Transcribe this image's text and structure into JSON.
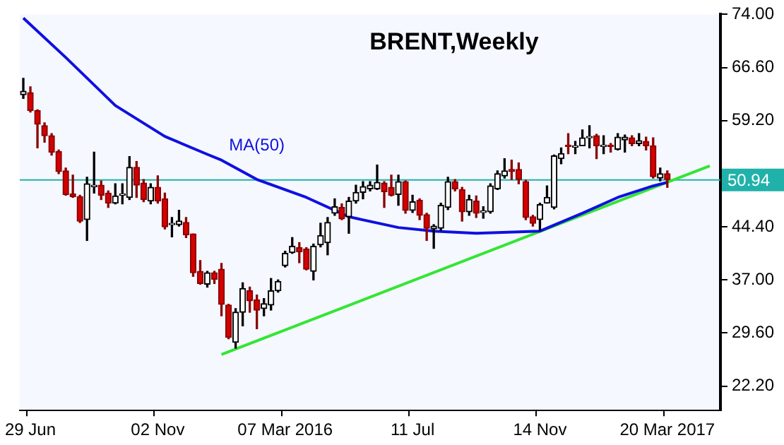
{
  "chart_data": {
    "type": "candlestick",
    "title": "BRENT,Weekly",
    "categories": [
      null,
      "29 Jun",
      null,
      null,
      null,
      null,
      null,
      null,
      null,
      null,
      null,
      null,
      null,
      null,
      null,
      null,
      null,
      null,
      null,
      "02 Nov",
      null,
      null,
      null,
      null,
      null,
      null,
      null,
      null,
      null,
      null,
      null,
      null,
      null,
      null,
      null,
      null,
      null,
      "07 Mar 2016",
      null,
      null,
      null,
      null,
      null,
      null,
      null,
      null,
      null,
      null,
      null,
      null,
      null,
      null,
      null,
      null,
      null,
      "11 Jul",
      null,
      null,
      null,
      null,
      null,
      null,
      null,
      null,
      null,
      null,
      null,
      null,
      null,
      null,
      null,
      null,
      null,
      "14 Nov",
      null,
      null,
      null,
      null,
      null,
      null,
      null,
      null,
      null,
      null,
      null,
      null,
      null,
      null,
      null,
      null,
      null,
      "20 Mar 2017",
      null,
      null,
      null,
      null,
      null,
      null,
      null
    ],
    "ohlc": [
      [
        62.8,
        65.1,
        62.3,
        63.3
      ],
      [
        63.1,
        63.9,
        60.4,
        60.6
      ],
      [
        60.6,
        60.7,
        55.4,
        58.7
      ],
      [
        58.5,
        58.9,
        56.2,
        57.1
      ],
      [
        57.1,
        57.4,
        54.4,
        54.8
      ],
      [
        54.9,
        55.1,
        51.8,
        52.1
      ],
      [
        52.2,
        52.6,
        48.8,
        48.9
      ],
      [
        49.0,
        51.6,
        48.5,
        48.6
      ],
      [
        48.6,
        48.8,
        45.0,
        45.2
      ],
      [
        45.4,
        51.3,
        42.5,
        50.4
      ],
      [
        50.0,
        54.8,
        49.1,
        50.2
      ],
      [
        50.2,
        50.8,
        48.2,
        48.8
      ],
      [
        49.1,
        49.4,
        47.1,
        47.7
      ],
      [
        47.7,
        50.4,
        47.6,
        48.7
      ],
      [
        48.8,
        50.4,
        47.6,
        48.9
      ],
      [
        48.5,
        54.2,
        48.2,
        52.7
      ],
      [
        52.7,
        53.5,
        48.5,
        50.2
      ],
      [
        50.5,
        51.0,
        47.9,
        48.2
      ],
      [
        48.0,
        50.4,
        47.6,
        49.9
      ],
      [
        49.9,
        51.5,
        47.7,
        48.0
      ],
      [
        48.3,
        49.1,
        44.1,
        44.4
      ],
      [
        44.7,
        45.7,
        43.0,
        44.9
      ],
      [
        44.7,
        46.7,
        44.5,
        45.2
      ],
      [
        45.0,
        45.7,
        42.9,
        43.3
      ],
      [
        43.4,
        43.4,
        37.5,
        38.0
      ],
      [
        38.2,
        39.7,
        36.4,
        36.5
      ],
      [
        36.4,
        38.2,
        36.0,
        38.0
      ],
      [
        38.0,
        38.2,
        36.5,
        37.1
      ],
      [
        38.5,
        39.3,
        32.0,
        33.6
      ],
      [
        33.5,
        33.6,
        28.8,
        29.0
      ],
      [
        28.3,
        33.0,
        27.5,
        32.5
      ],
      [
        32.5,
        36.6,
        30.6,
        35.8
      ],
      [
        35.5,
        36.0,
        32.5,
        34.1
      ],
      [
        34.2,
        34.9,
        30.2,
        32.8
      ],
      [
        33.0,
        34.4,
        32.0,
        33.7
      ],
      [
        33.5,
        37.2,
        32.8,
        35.5
      ],
      [
        35.5,
        37.0,
        35.3,
        36.8
      ],
      [
        39.0,
        41.0,
        38.8,
        40.7
      ],
      [
        40.8,
        42.9,
        40.7,
        41.7
      ],
      [
        41.5,
        42.2,
        39.4,
        40.9
      ],
      [
        41.3,
        41.5,
        38.4,
        38.5
      ],
      [
        38.2,
        42.0,
        37.0,
        41.7
      ],
      [
        41.9,
        44.9,
        41.6,
        43.2
      ],
      [
        42.2,
        45.7,
        40.5,
        45.0
      ],
      [
        46.3,
        48.3,
        46.0,
        47.2
      ],
      [
        47.1,
        47.6,
        45.4,
        45.5
      ],
      [
        45.8,
        48.5,
        43.5,
        48.0
      ],
      [
        48.0,
        50.2,
        47.7,
        49.2
      ],
      [
        49.2,
        50.7,
        48.3,
        50.0
      ],
      [
        49.7,
        50.7,
        49.4,
        50.2
      ],
      [
        49.7,
        53.0,
        49.6,
        50.6
      ],
      [
        50.5,
        50.7,
        47.1,
        49.3
      ],
      [
        49.9,
        51.6,
        48.7,
        48.8
      ],
      [
        48.9,
        51.6,
        47.4,
        50.7
      ],
      [
        50.7,
        50.8,
        46.3,
        46.7
      ],
      [
        46.7,
        48.8,
        46.4,
        47.9
      ],
      [
        48.1,
        48.3,
        45.4,
        46.0
      ],
      [
        46.1,
        46.3,
        42.5,
        44.2
      ],
      [
        44.1,
        44.7,
        41.4,
        44.5
      ],
      [
        44.2,
        47.7,
        43.9,
        47.4
      ],
      [
        47.1,
        51.3,
        46.8,
        50.7
      ],
      [
        50.7,
        51.0,
        49.4,
        49.7
      ],
      [
        49.6,
        49.9,
        45.2,
        46.5
      ],
      [
        46.5,
        48.8,
        46.0,
        48.2
      ],
      [
        48.0,
        48.7,
        45.7,
        46.3
      ],
      [
        46.4,
        47.2,
        45.6,
        46.6
      ],
      [
        46.5,
        50.4,
        46.3,
        50.1
      ],
      [
        49.7,
        52.2,
        49.6,
        51.8
      ],
      [
        51.5,
        53.9,
        51.2,
        52.2
      ],
      [
        52.4,
        53.7,
        51.0,
        52.1
      ],
      [
        52.4,
        53.3,
        50.4,
        51.0
      ],
      [
        50.7,
        50.9,
        45.4,
        45.7
      ],
      [
        45.8,
        46.0,
        44.5,
        44.9
      ],
      [
        45.4,
        47.7,
        43.9,
        47.5
      ],
      [
        47.7,
        50.1,
        47.7,
        48.5
      ],
      [
        47.1,
        54.4,
        46.9,
        54.3
      ],
      [
        53.9,
        55.4,
        53.2,
        54.6
      ],
      [
        55.8,
        57.4,
        54.6,
        55.6
      ],
      [
        55.5,
        56.3,
        54.6,
        55.7
      ],
      [
        55.7,
        57.9,
        55.7,
        56.8
      ],
      [
        56.8,
        58.5,
        55.4,
        56.9
      ],
      [
        57.1,
        57.3,
        53.9,
        55.7
      ],
      [
        55.6,
        57.1,
        54.6,
        55.7
      ],
      [
        55.8,
        56.0,
        54.8,
        55.6
      ],
      [
        55.2,
        57.4,
        55.1,
        56.9
      ],
      [
        56.5,
        57.2,
        54.8,
        56.9
      ],
      [
        56.8,
        57.1,
        55.7,
        56.0
      ],
      [
        56.0,
        57.4,
        55.7,
        56.4
      ],
      [
        56.3,
        56.9,
        55.1,
        55.7
      ],
      [
        55.7,
        56.8,
        51.2,
        51.4
      ],
      [
        51.2,
        52.6,
        50.8,
        51.8
      ],
      [
        51.8,
        52.2,
        49.9,
        51.0
      ],
      null,
      null,
      null,
      null,
      null,
      null,
      null
    ],
    "series": [
      {
        "name": "MA(50)",
        "type": "line",
        "color": "#1010e0",
        "values": [
          73.5,
          null,
          null,
          null,
          null,
          null,
          68.0,
          null,
          null,
          null,
          null,
          null,
          null,
          61.3,
          null,
          null,
          null,
          null,
          null,
          null,
          57.0,
          null,
          null,
          null,
          null,
          null,
          54.5,
          null,
          53.7,
          null,
          null,
          null,
          null,
          51.0,
          null,
          null,
          null,
          null,
          null,
          null,
          48.5,
          null,
          null,
          null,
          null,
          null,
          45.8,
          null,
          null,
          null,
          null,
          null,
          null,
          44.3,
          null,
          null,
          null,
          null,
          43.8,
          null,
          null,
          null,
          null,
          null,
          43.5,
          null,
          null,
          null,
          null,
          null,
          null,
          null,
          null,
          43.8,
          null,
          null,
          null,
          null,
          null,
          46.3,
          null,
          null,
          null,
          null,
          48.5,
          null,
          null,
          null,
          null,
          50.1,
          null,
          50.6,
          null,
          null,
          null,
          null,
          null,
          null,
          null
        ]
      },
      {
        "type": "line",
        "color": "#33e633",
        "values": [
          null,
          null,
          null,
          null,
          null,
          null,
          null,
          null,
          null,
          null,
          null,
          null,
          null,
          null,
          null,
          null,
          null,
          null,
          null,
          null,
          null,
          null,
          null,
          null,
          null,
          null,
          null,
          null,
          26.6,
          null,
          null,
          null,
          null,
          null,
          null,
          null,
          null,
          null,
          null,
          null,
          null,
          null,
          null,
          null,
          null,
          null,
          null,
          null,
          null,
          null,
          null,
          null,
          null,
          null,
          null,
          null,
          null,
          null,
          null,
          null,
          null,
          null,
          null,
          null,
          null,
          null,
          null,
          null,
          null,
          null,
          null,
          null,
          null,
          null,
          null,
          null,
          null,
          null,
          null,
          null,
          null,
          null,
          null,
          null,
          null,
          null,
          null,
          null,
          null,
          null,
          null,
          null,
          null,
          null,
          null,
          null,
          null,
          52.9,
          null
        ]
      }
    ],
    "ylim": [
      18.8,
      74.0
    ],
    "yticks": [
      {
        "value": 22.2,
        "label": "22.20"
      },
      {
        "value": 29.6,
        "label": "29.60"
      },
      {
        "value": 37.0,
        "label": "37.00"
      },
      {
        "value": 44.4,
        "label": "44.40"
      },
      {
        "value": 59.2,
        "label": "59.20"
      },
      {
        "value": 66.6,
        "label": "66.60"
      },
      {
        "value": 74.0,
        "label": "74.00"
      }
    ],
    "ref_lines": [
      {
        "axis": "y",
        "value": 50.94,
        "label": "50.94",
        "color": "#20b2aa"
      }
    ]
  }
}
